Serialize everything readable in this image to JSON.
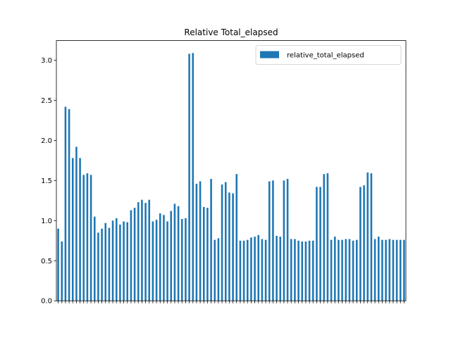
{
  "chart_data": {
    "type": "bar",
    "title": "Relative Total_elapsed",
    "categories": [
      null,
      null,
      null,
      null,
      null,
      null,
      null,
      null,
      null,
      null,
      null,
      null,
      null,
      null,
      null,
      null,
      null,
      null,
      null,
      null,
      null,
      null,
      null,
      null,
      null,
      null,
      null,
      null,
      null,
      null,
      null,
      null,
      null,
      null,
      null,
      null,
      null,
      null,
      null,
      null,
      null,
      null,
      null,
      null,
      null,
      null,
      null,
      null,
      null,
      null,
      null,
      null,
      null,
      null,
      null,
      null,
      null,
      null,
      null,
      null,
      null,
      null,
      null,
      null,
      null,
      null,
      null,
      null,
      null,
      null,
      null,
      null,
      null,
      null,
      null,
      null,
      null,
      null,
      null,
      null,
      null,
      null,
      null,
      null,
      null,
      null,
      null,
      null,
      null,
      null,
      null,
      null,
      null,
      null,
      null,
      null
    ],
    "series": [
      {
        "name": "relative_total_elapsed",
        "color": "#1f77b4",
        "values": [
          0.9,
          0.74,
          2.42,
          2.39,
          1.78,
          1.92,
          1.78,
          1.57,
          1.59,
          1.57,
          1.05,
          0.85,
          0.9,
          0.97,
          0.91,
          1.0,
          1.03,
          0.95,
          0.99,
          0.98,
          1.13,
          1.16,
          1.23,
          1.26,
          1.22,
          1.26,
          0.99,
          1.01,
          1.09,
          1.07,
          0.99,
          1.12,
          1.21,
          1.18,
          1.02,
          1.03,
          3.08,
          3.09,
          1.46,
          1.49,
          1.17,
          1.16,
          1.52,
          0.76,
          0.78,
          1.45,
          1.48,
          1.35,
          1.34,
          1.58,
          0.75,
          0.75,
          0.76,
          0.79,
          0.8,
          0.82,
          0.77,
          0.76,
          1.49,
          1.5,
          0.81,
          0.8,
          1.5,
          1.52,
          0.77,
          0.77,
          0.75,
          0.74,
          0.74,
          0.75,
          0.75,
          1.42,
          1.42,
          1.58,
          1.59,
          0.76,
          0.8,
          0.76,
          0.76,
          0.77,
          0.77,
          0.75,
          0.76,
          1.42,
          1.44,
          1.6,
          1.59,
          0.77,
          0.8,
          0.76,
          0.76,
          0.77,
          0.76,
          0.76,
          0.76,
          0.76
        ]
      }
    ],
    "ylim": [
      0,
      3.245
    ],
    "yticks": [
      {
        "value": 0,
        "label": "0.0"
      },
      0.5,
      {
        "value": 1,
        "label": "1.0"
      },
      1.5,
      {
        "value": 2,
        "label": "2.0"
      },
      2.5,
      {
        "value": 3,
        "label": "3.0"
      }
    ],
    "legend": "upper right"
  }
}
